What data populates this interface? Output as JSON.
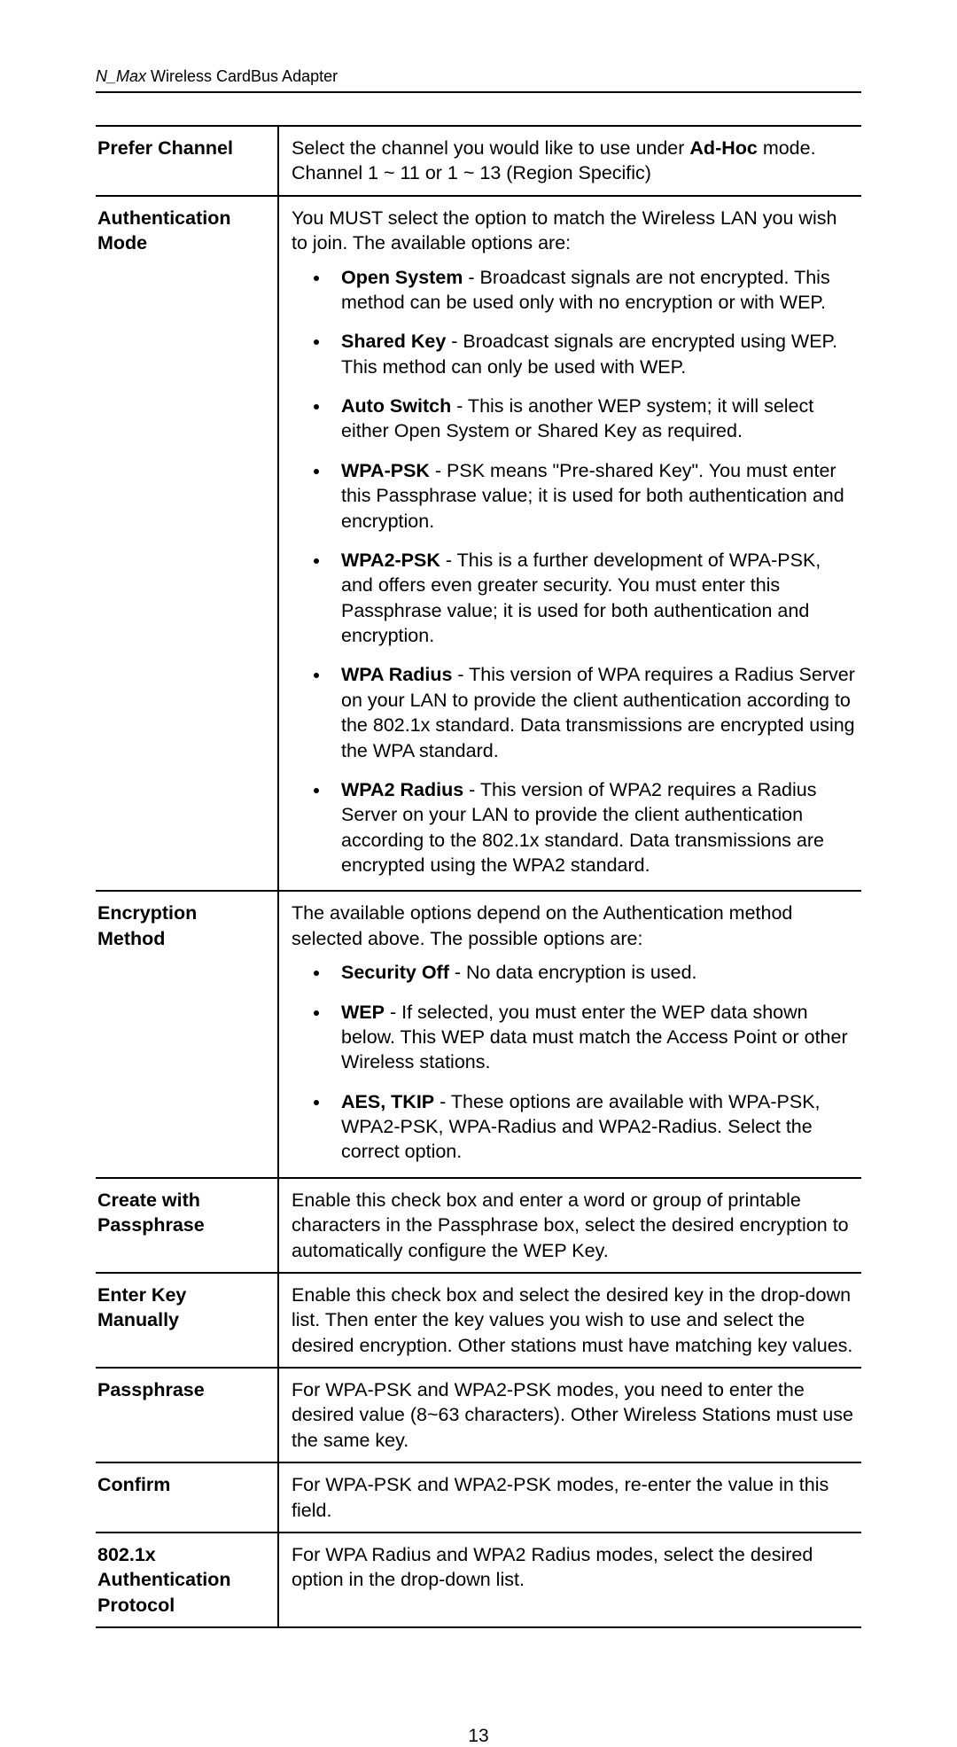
{
  "header": {
    "prefix": "N_Max",
    "rest": " Wireless CardBus Adapter"
  },
  "rows": {
    "prefer_channel": {
      "label": "Prefer Channel",
      "intro_a": "Select the channel you would like to use under ",
      "intro_b": "Ad-Hoc",
      "intro_c": " mode. Channel 1 ~ 11 or 1 ~ 13 (Region Specific)"
    },
    "auth_mode": {
      "label": "Authentication Mode",
      "intro": "You MUST select the option to match the Wireless LAN you wish to join. The available options are:",
      "items": {
        "open_system": {
          "term": "Open System",
          "text": " - Broadcast signals are not encrypted. This method can be used only with no encryption or with WEP."
        },
        "shared_key": {
          "term": "Shared Key",
          "text": " - Broadcast signals are encrypted using WEP. This method can only be used with WEP."
        },
        "auto_switch": {
          "term": "Auto Switch",
          "text": " - This is another WEP system; it will select either Open System or Shared Key as required."
        },
        "wpa_psk": {
          "term": "WPA-PSK",
          "text": " - PSK means \"Pre-shared Key\". You must enter this Passphrase value; it is used for both authentication and encryption."
        },
        "wpa2_psk": {
          "term": "WPA2-PSK",
          "text": " - This is a further development of WPA-PSK, and offers even greater security. You must enter this Passphrase value; it is used for both authentication and encryption."
        },
        "wpa_radius": {
          "term": "WPA Radius",
          "text": " - This version of WPA requires a Radius Server on your LAN to provide the client authentication according to the 802.1x standard. Data transmissions are encrypted using the WPA standard."
        },
        "wpa2_radius": {
          "term": "WPA2 Radius",
          "text": " - This version of WPA2 requires a Radius Server on your LAN to provide the client authentication according to the 802.1x standard. Data transmissions are encrypted using the WPA2 standard."
        }
      }
    },
    "encryption": {
      "label": "Encryption Method",
      "intro": "The available options depend on the Authentication method selected above. The possible options are:",
      "items": {
        "sec_off": {
          "term": "Security Off",
          "text": " - No data encryption is used."
        },
        "wep": {
          "term": "WEP",
          "text": " - If selected, you must enter the WEP data shown below. This WEP data must match the Access Point or other Wireless stations."
        },
        "aes": {
          "term": "AES, TKIP",
          "text": " - These options are available with WPA-PSK, WPA2-PSK, WPA-Radius and WPA2-Radius. Select the correct option."
        }
      }
    },
    "create_pass": {
      "label": "Create with Passphrase",
      "text": "Enable this check box and enter a word or group of printable characters in the Passphrase box, select the desired encryption to automatically configure the WEP Key."
    },
    "enter_key": {
      "label": "Enter Key Manually",
      "text": "Enable this check box and select the desired key in the drop-down list. Then enter the key values you wish to use and select the desired encryption. Other stations must have matching key values."
    },
    "passphrase": {
      "label": "Passphrase",
      "text": "For WPA-PSK and WPA2-PSK modes, you need to enter the desired value (8~63 characters). Other Wireless Stations must use the same key."
    },
    "confirm": {
      "label": "Confirm",
      "text": "For WPA-PSK and WPA2-PSK modes, re-enter the value in this field."
    },
    "dot1x": {
      "label": "802.1x Authentication Protocol",
      "text": "For WPA Radius and WPA2 Radius modes, select the desired option in the drop-down list."
    }
  },
  "page_number": "13"
}
